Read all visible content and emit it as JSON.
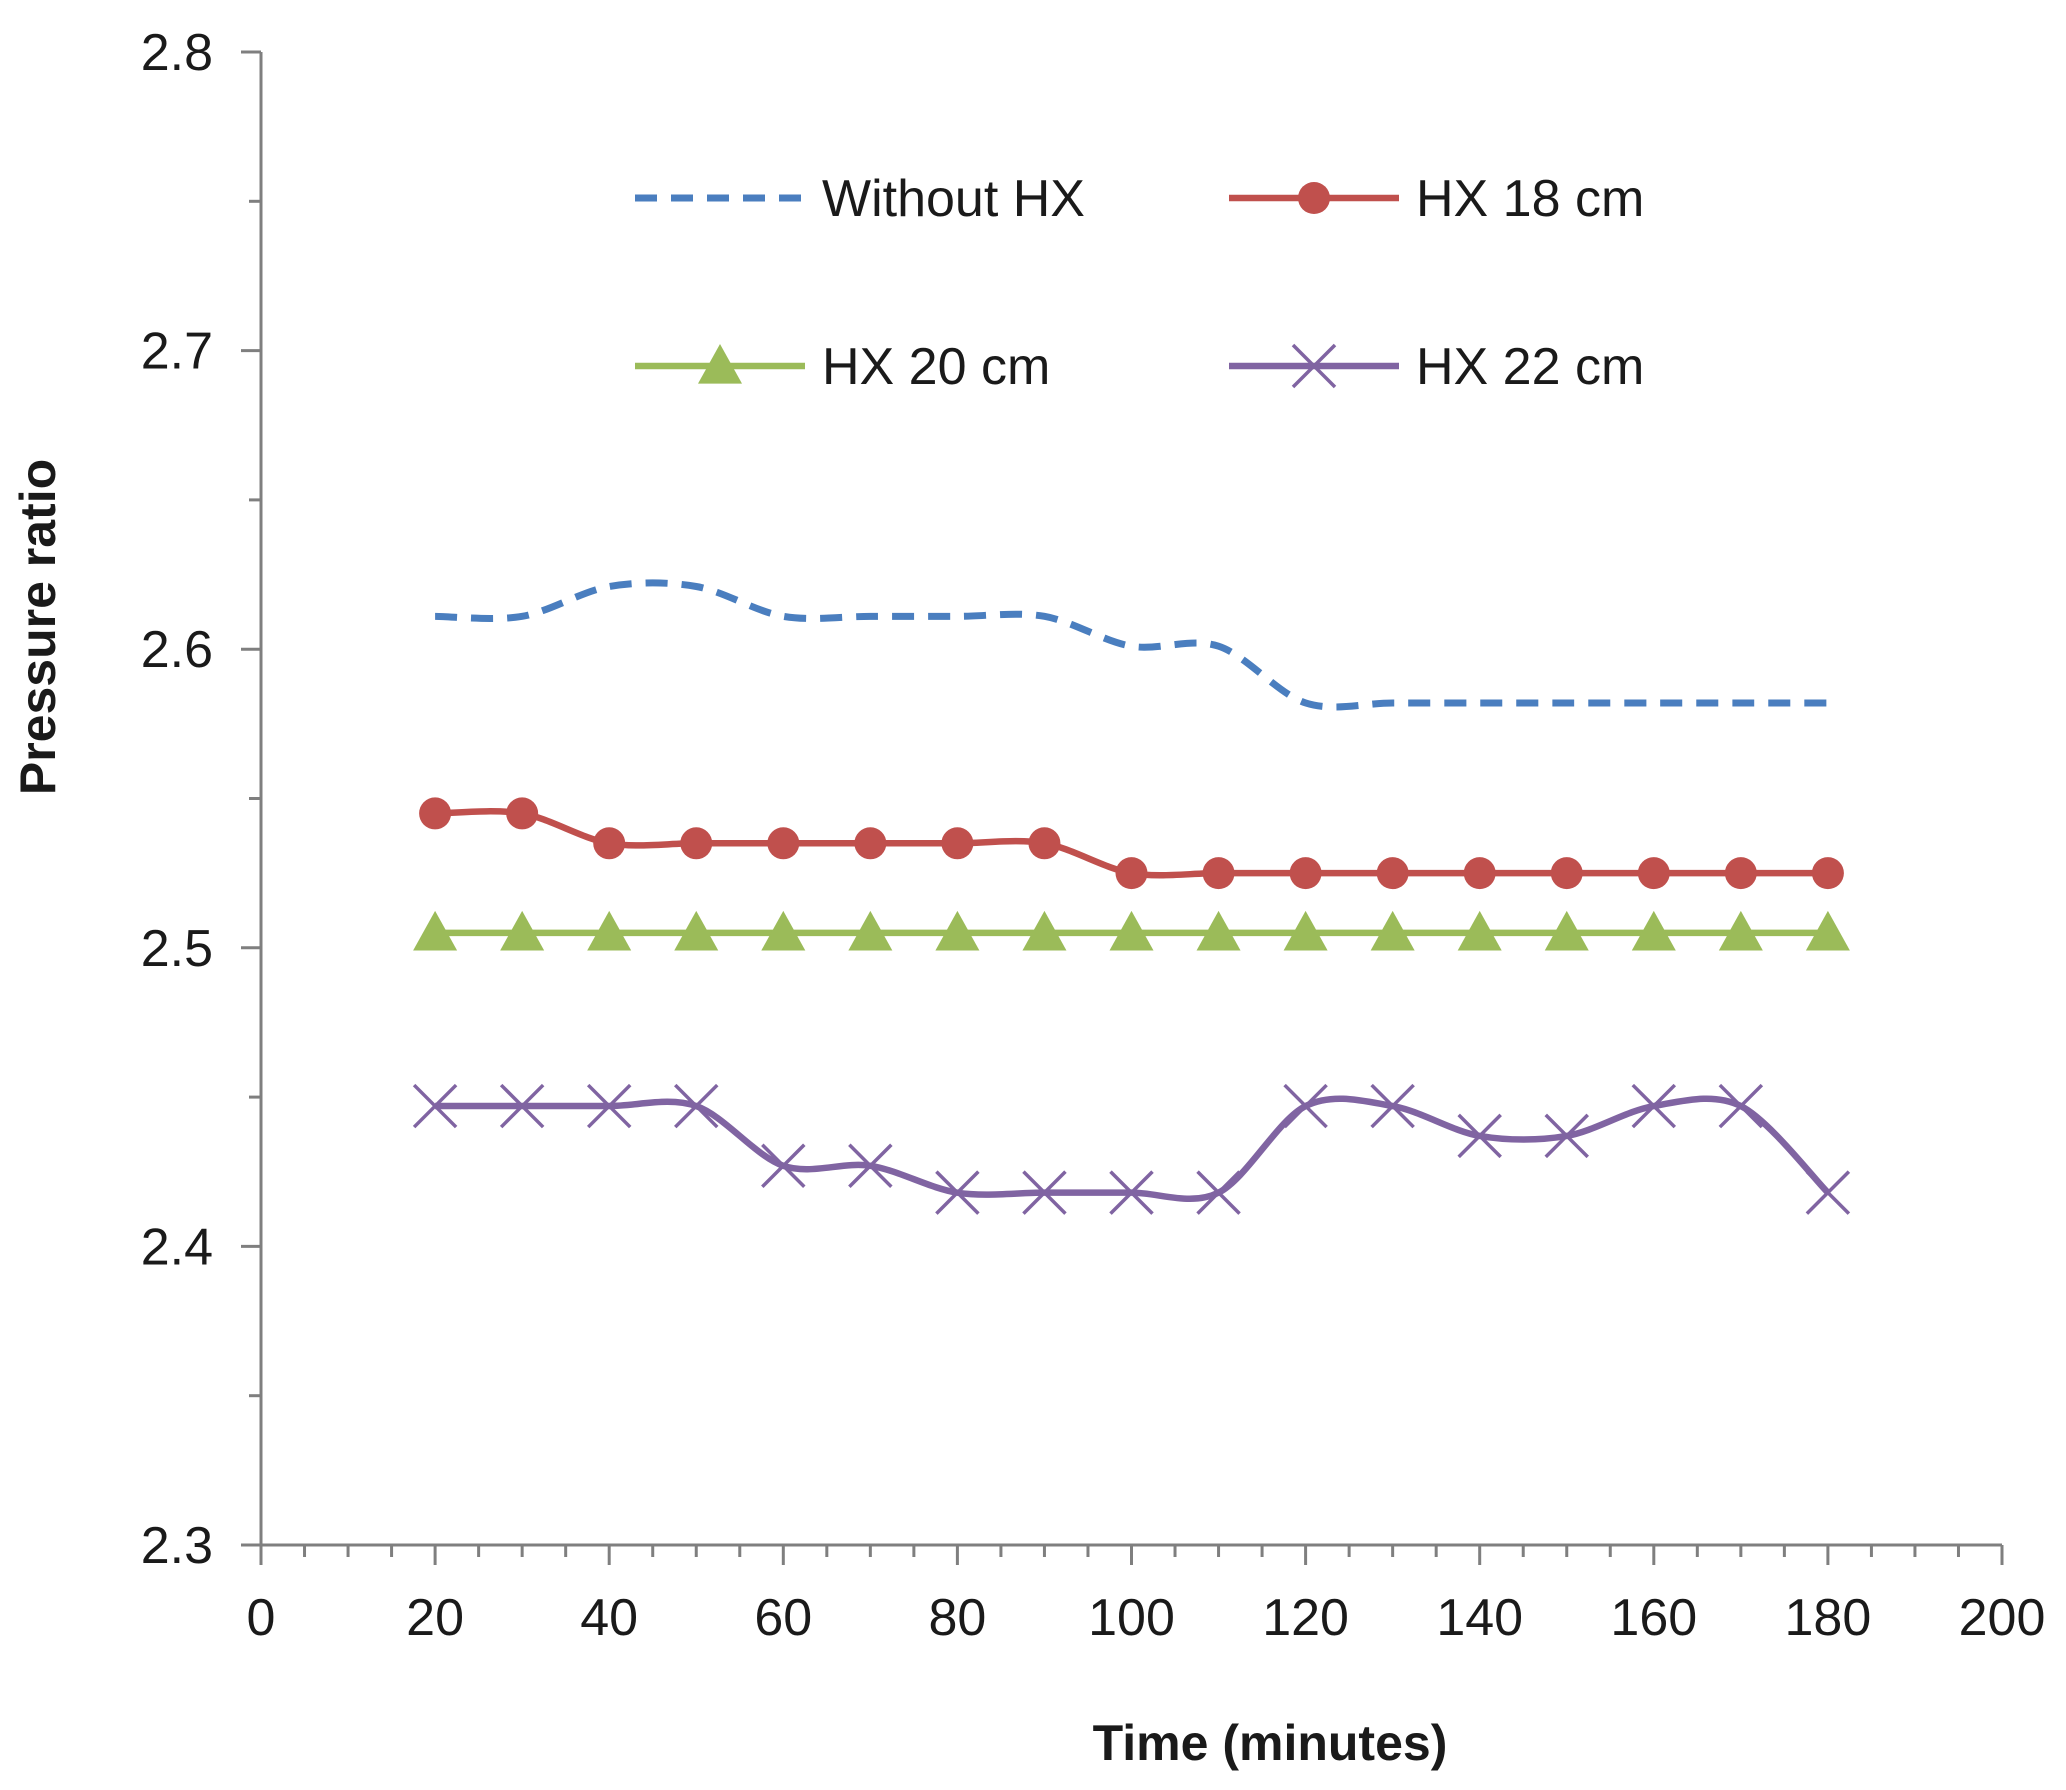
{
  "chart_data": {
    "type": "line",
    "title": "",
    "xlabel": "Time (minutes)",
    "ylabel": "Pressure ratio",
    "xlim": [
      0,
      200
    ],
    "ylim": [
      2.3,
      2.8
    ],
    "x_ticks": [
      0,
      20,
      40,
      60,
      80,
      100,
      120,
      140,
      160,
      180,
      200
    ],
    "x_tick_labels": [
      "0",
      "20",
      "40",
      "60",
      "80",
      "100",
      "120",
      "140",
      "160",
      "180",
      "200"
    ],
    "y_ticks": [
      2.3,
      2.4,
      2.5,
      2.6,
      2.7,
      2.8
    ],
    "y_tick_labels": [
      "2.3",
      "2.4",
      "2.5",
      "2.6",
      "2.7",
      "2.8"
    ],
    "grid": false,
    "legend_position": "top-right",
    "x": [
      20,
      30,
      40,
      50,
      60,
      70,
      80,
      90,
      100,
      110,
      120,
      130,
      140,
      150,
      160,
      170,
      180
    ],
    "series": [
      {
        "name": "Without HX",
        "color": "#4a7ebf",
        "style": "dashed",
        "marker": "none",
        "values": [
          2.611,
          2.611,
          2.621,
          2.621,
          2.611,
          2.611,
          2.611,
          2.611,
          2.601,
          2.601,
          2.582,
          2.582,
          2.582,
          2.582,
          2.582,
          2.582,
          2.582
        ]
      },
      {
        "name": "HX 18 cm",
        "color": "#c0504d",
        "style": "solid",
        "marker": "circle",
        "values": [
          2.545,
          2.545,
          2.535,
          2.535,
          2.535,
          2.535,
          2.535,
          2.535,
          2.525,
          2.525,
          2.525,
          2.525,
          2.525,
          2.525,
          2.525,
          2.525,
          2.525
        ]
      },
      {
        "name": "HX 20 cm",
        "color": "#9bbb59",
        "style": "solid",
        "marker": "triangle",
        "values": [
          2.505,
          2.505,
          2.505,
          2.505,
          2.505,
          2.505,
          2.505,
          2.505,
          2.505,
          2.505,
          2.505,
          2.505,
          2.505,
          2.505,
          2.505,
          2.505,
          2.505
        ]
      },
      {
        "name": "HX 22 cm",
        "color": "#8064a2",
        "style": "solid",
        "marker": "x",
        "values": [
          2.447,
          2.447,
          2.447,
          2.447,
          2.427,
          2.427,
          2.418,
          2.418,
          2.418,
          2.418,
          2.447,
          2.447,
          2.437,
          2.437,
          2.447,
          2.447,
          2.418
        ]
      }
    ]
  }
}
